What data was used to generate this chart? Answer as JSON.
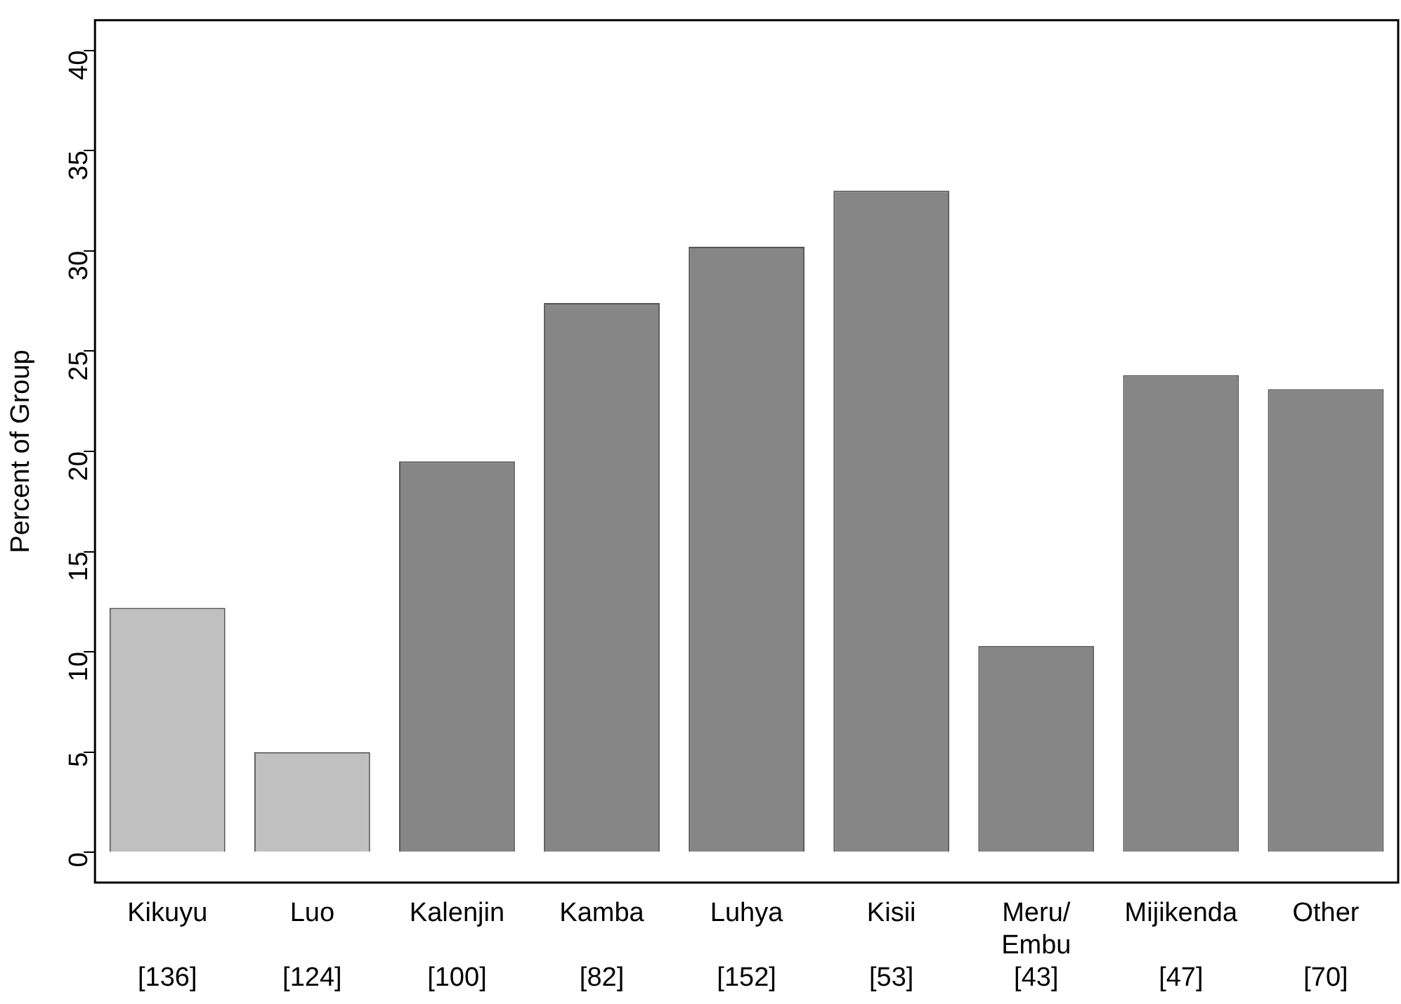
{
  "chart_data": {
    "type": "bar",
    "ylabel": "Percent of Group",
    "categories": [
      "Kikuyu\n[136]",
      "Luo\n[124]",
      "Kalenjin\n[100]",
      "Kamba\n[82]",
      "Luhya\n[152]",
      "Kisii\n[53]",
      "Meru/\nEmbu\n[43]",
      "Mijikenda\n[47]",
      "Other\n[70]"
    ],
    "values": [
      12.2,
      5.0,
      19.5,
      27.4,
      30.2,
      33.0,
      10.3,
      23.8,
      23.1
    ],
    "colors": [
      "#c0c0c0",
      "#c0c0c0",
      "#868686",
      "#868686",
      "#868686",
      "#868686",
      "#868686",
      "#868686",
      "#868686"
    ],
    "ylim": [
      -1.5,
      41.5
    ],
    "yticks": [
      0,
      5,
      10,
      15,
      20,
      25,
      30,
      35,
      40
    ],
    "grid": false,
    "legend": false
  }
}
